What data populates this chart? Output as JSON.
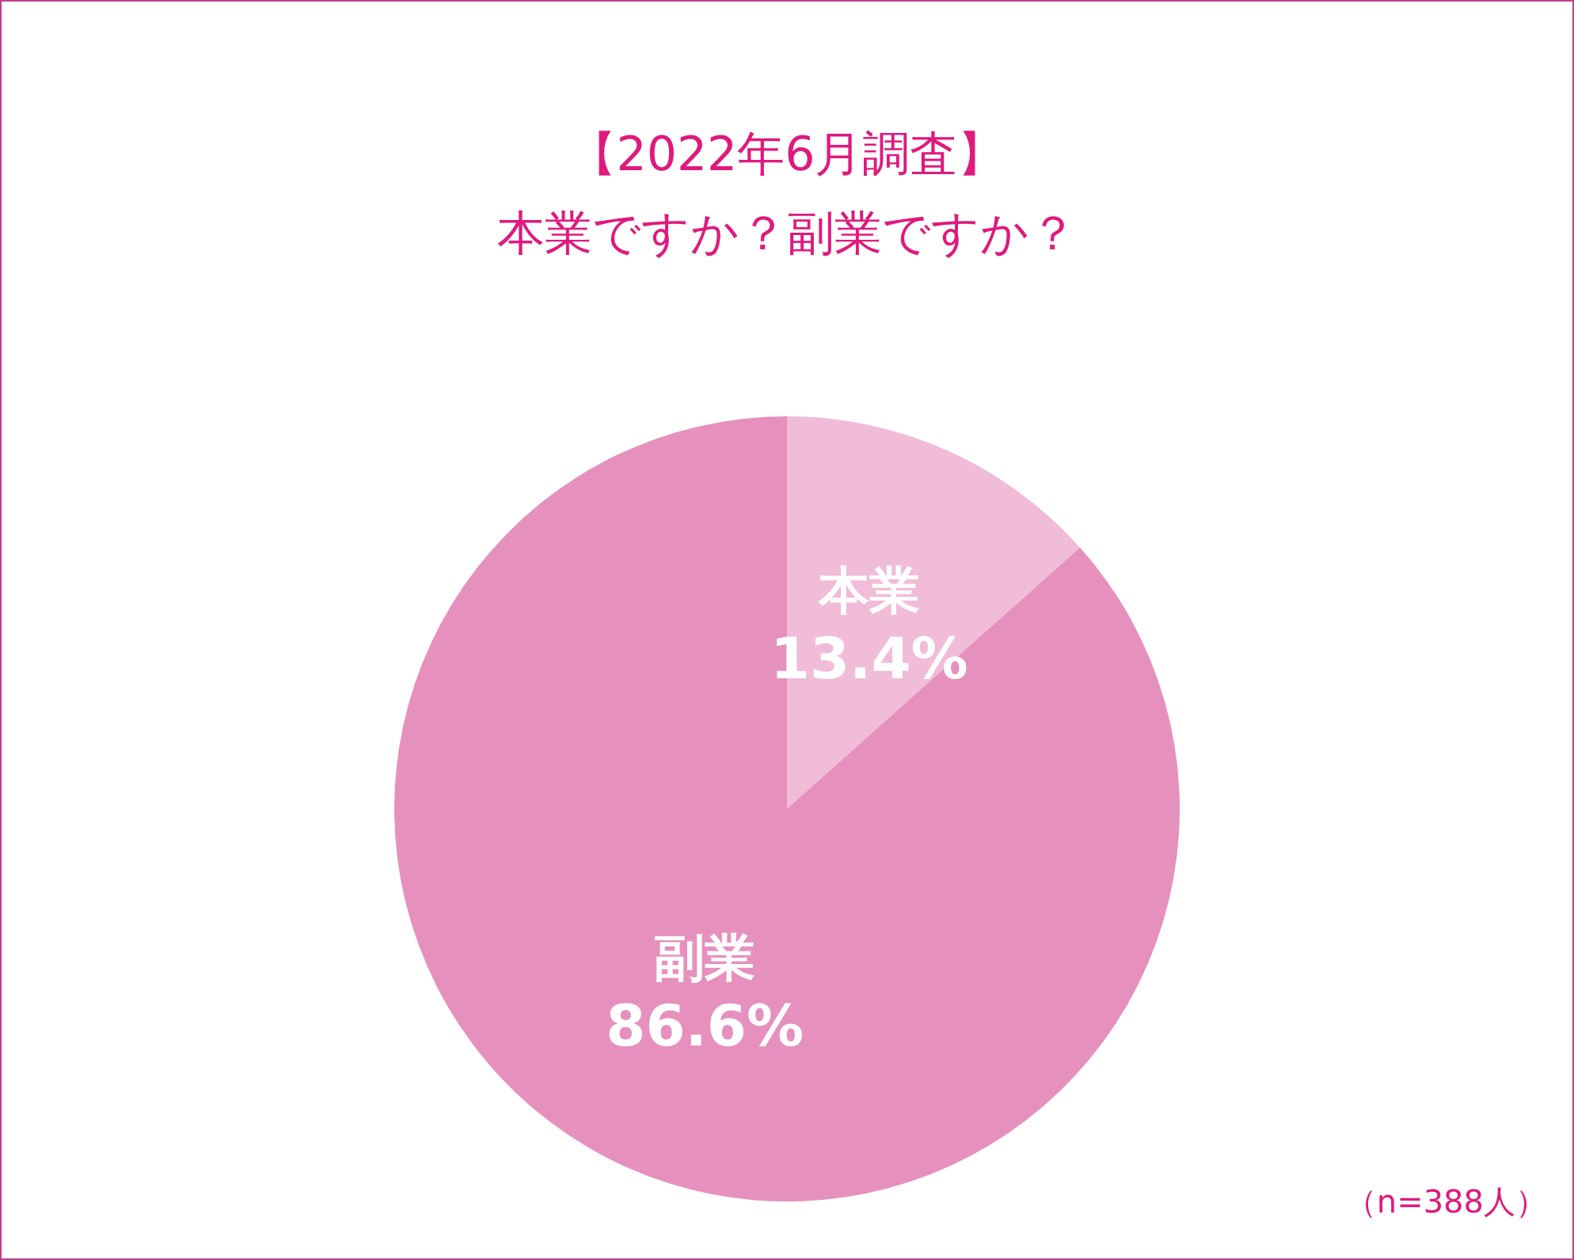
{
  "chart_data": {
    "type": "pie",
    "title": "【2022年6月調査】",
    "subtitle": "本業ですか？副業ですか？",
    "categories": [
      "本業",
      "副業"
    ],
    "values": [
      13.4,
      86.6
    ],
    "colors": [
      "#f0bcd8",
      "#e690be"
    ],
    "value_labels": [
      "13.4%",
      "86.6%"
    ],
    "legend": false,
    "annotations": [
      "（n=388人）"
    ]
  }
}
